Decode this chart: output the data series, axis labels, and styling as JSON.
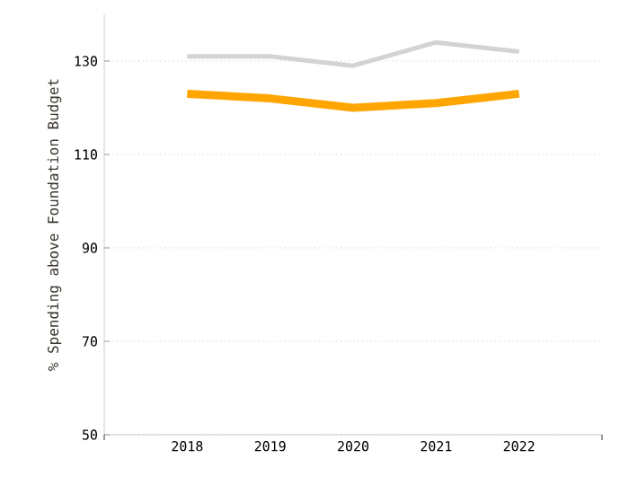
{
  "chart_data": {
    "type": "line",
    "ylabel": "% Spending above Foundation Budget",
    "categories": [
      "2018",
      "2019",
      "2020",
      "2021",
      "2022"
    ],
    "series": [
      {
        "color": "#d3d3d3",
        "values": [
          131,
          131,
          129,
          134,
          132
        ]
      },
      {
        "color": "#ffa500",
        "values": [
          123,
          122,
          120,
          121,
          123
        ]
      }
    ],
    "ylim": [
      50,
      140
    ],
    "yticks": [
      50,
      70,
      90,
      110,
      130
    ],
    "grid": "y",
    "marker": "none"
  }
}
